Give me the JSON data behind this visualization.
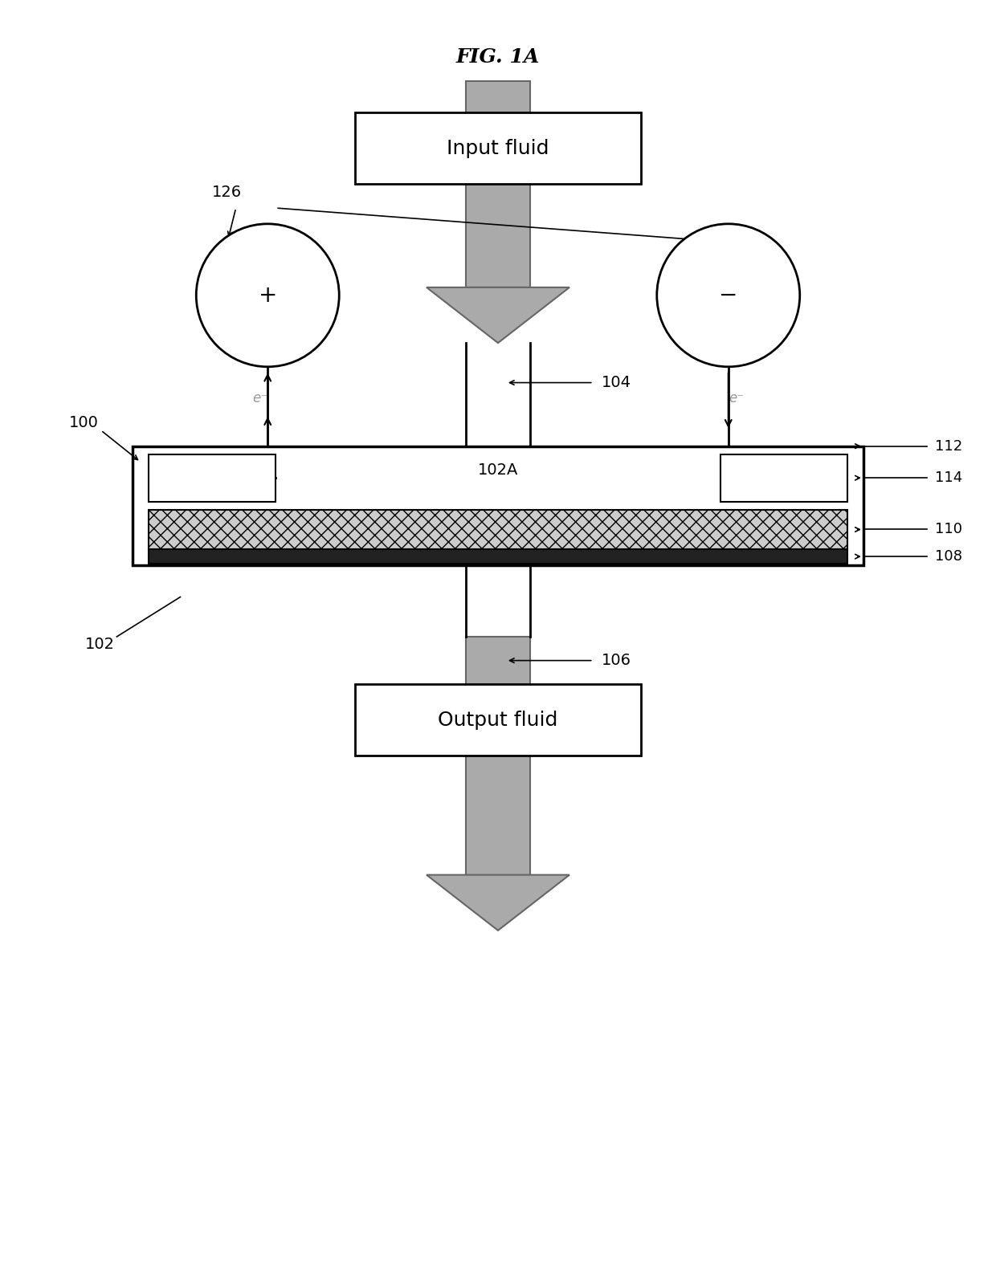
{
  "title": "FIG. 1A",
  "bg_color": "#ffffff",
  "arrow_gray": "#aaaaaa",
  "arrow_edge": "#666666",
  "input_fluid_label": "Input fluid",
  "output_fluid_label": "Output fluid",
  "label_102A": "102A",
  "label_100": "100",
  "label_102": "102",
  "label_104": "104",
  "label_106": "106",
  "label_108": "108",
  "label_110": "110",
  "label_112": "112",
  "label_114": "114",
  "label_126": "126",
  "label_plus": "+",
  "label_minus": "−",
  "label_eminus_left": "e⁻",
  "label_eminus_right": "e⁻"
}
